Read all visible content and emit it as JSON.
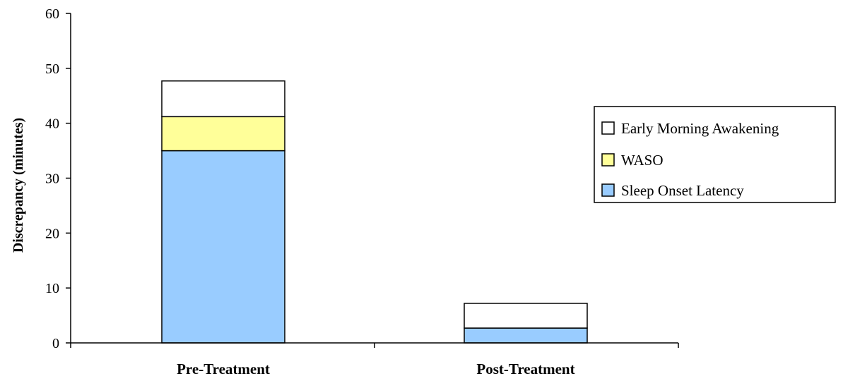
{
  "chart_data": {
    "type": "bar",
    "stacked": true,
    "title": "",
    "xlabel": "",
    "ylabel": "Discrepancy (minutes)",
    "ylim": [
      0,
      60
    ],
    "yticks": [
      0,
      10,
      20,
      30,
      40,
      50,
      60
    ],
    "grid": false,
    "legend_position": "right",
    "categories": [
      "Pre-Treatment",
      "Post-Treatment"
    ],
    "series": [
      {
        "name": "Sleep Onset Latency",
        "values": [
          35.0,
          2.7
        ],
        "color": "#99ccff"
      },
      {
        "name": "WASO",
        "values": [
          6.2,
          0.0
        ],
        "color": "#ffff99"
      },
      {
        "name": "Early Morning Awakening",
        "values": [
          6.5,
          4.5
        ],
        "color": "#ffffff"
      }
    ],
    "legend_order": [
      "Early Morning Awakening",
      "WASO",
      "Sleep Onset Latency"
    ]
  }
}
